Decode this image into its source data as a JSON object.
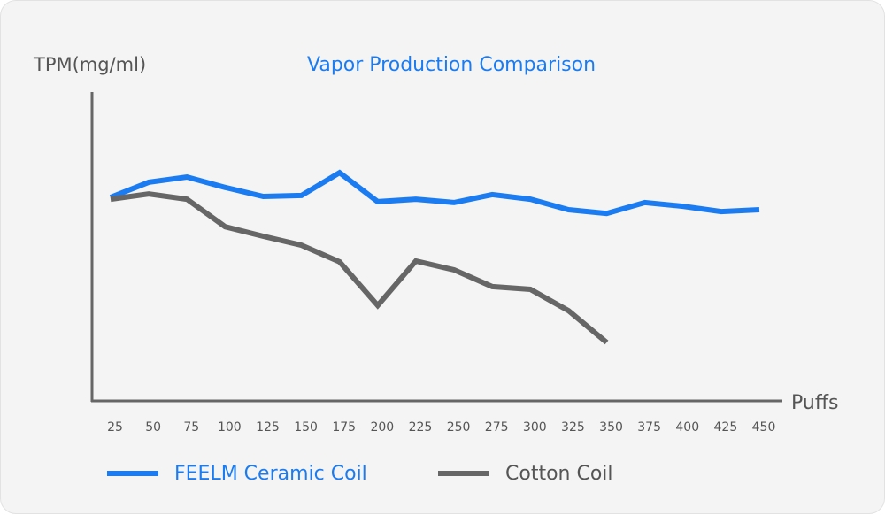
{
  "chart_data": {
    "type": "line",
    "title": "Vapor Production Comparison",
    "xlabel": "Puffs",
    "ylabel": "TPM(mg/ml)",
    "ylim": [
      0,
      100
    ],
    "y_units_note": "relative index (no y tick labels shown)",
    "grid": false,
    "legend_position": "bottom-left",
    "x_ticks": [
      25,
      50,
      75,
      100,
      125,
      150,
      175,
      200,
      225,
      250,
      275,
      300,
      325,
      350,
      375,
      400,
      425,
      450
    ],
    "series": [
      {
        "name": "FEELM Ceramic Coil",
        "color": "#1b7cf2",
        "x": [
          25,
          50,
          75,
          100,
          125,
          150,
          175,
          200,
          225,
          250,
          275,
          300,
          325,
          350,
          375,
          400,
          425,
          450
        ],
        "values": [
          65.9,
          70.8,
          72.5,
          69.1,
          66.2,
          66.5,
          73.9,
          64.5,
          65.3,
          64.2,
          66.8,
          65.3,
          61.9,
          60.7,
          64.2,
          63.0,
          61.3,
          61.9
        ]
      },
      {
        "name": "Cotton Coil",
        "color": "#666666",
        "x": [
          25,
          50,
          75,
          100,
          125,
          150,
          175,
          200,
          225,
          250,
          275,
          300,
          325,
          350
        ],
        "values": [
          65.3,
          67.0,
          65.3,
          56.4,
          53.3,
          50.4,
          45.0,
          30.9,
          45.3,
          42.4,
          37.0,
          36.1,
          29.2,
          18.9
        ]
      }
    ]
  }
}
